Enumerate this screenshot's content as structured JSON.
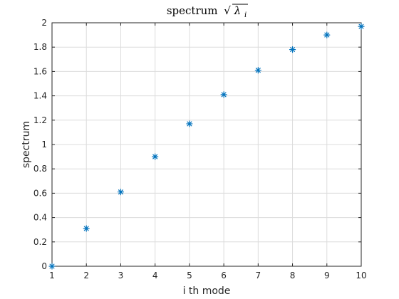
{
  "chart_data": {
    "type": "scatter",
    "title": "spectrum",
    "title_symbol": "λ",
    "title_subscript": "i",
    "xlabel": "i th mode",
    "ylabel": "spectrum",
    "xlim": [
      1,
      10
    ],
    "ylim": [
      0,
      2
    ],
    "x_ticks": [
      "1",
      "2",
      "3",
      "4",
      "5",
      "6",
      "7",
      "8",
      "9",
      "10"
    ],
    "y_ticks": [
      "0",
      "0.2",
      "0.4",
      "0.6",
      "0.8",
      "1",
      "1.2",
      "1.4",
      "1.6",
      "1.8",
      "2"
    ],
    "grid": true,
    "marker": "asterisk",
    "color": "#0072BD",
    "series": [
      {
        "x": [
          1,
          2,
          3,
          4,
          5,
          6,
          7,
          8,
          9,
          10
        ],
        "y": [
          0,
          0.31,
          0.61,
          0.9,
          1.17,
          1.41,
          1.61,
          1.78,
          1.9,
          1.97
        ]
      }
    ]
  }
}
